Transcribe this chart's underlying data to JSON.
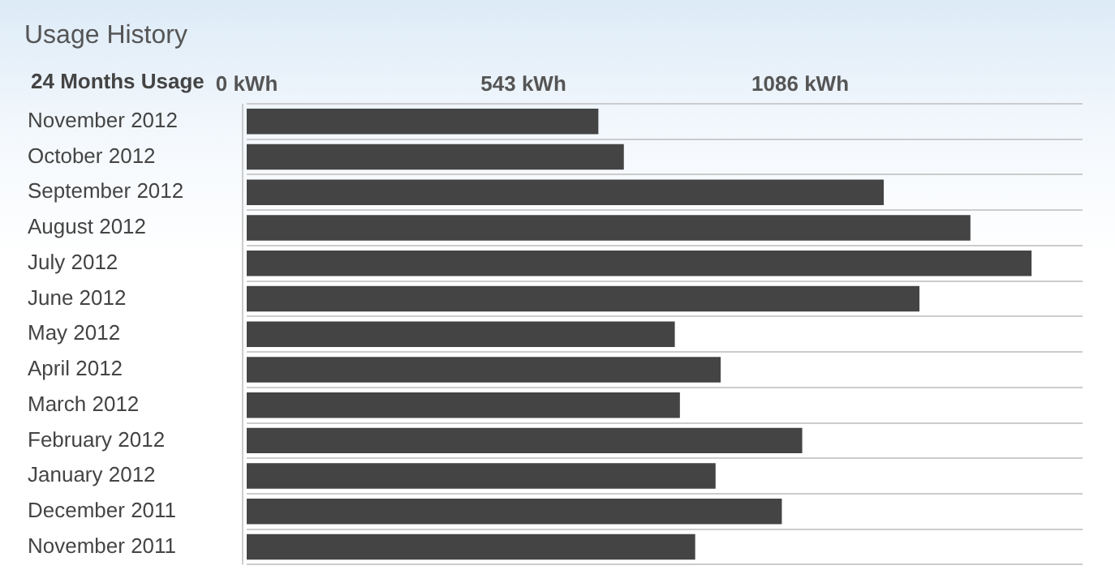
{
  "chart_data": {
    "type": "bar",
    "orientation": "horizontal",
    "title": "Usage History",
    "ylabel": "24 Months Usage",
    "categories": [
      "November 2012",
      "October 2012",
      "September 2012",
      "August 2012",
      "July 2012",
      "June 2012",
      "May 2012",
      "April 2012",
      "March 2012",
      "February 2012",
      "January 2012",
      "December 2011",
      "November 2011"
    ],
    "values": [
      690,
      740,
      1250,
      1420,
      1540,
      1320,
      840,
      930,
      850,
      1090,
      920,
      1050,
      880
    ],
    "color": "#444444",
    "xlim": [
      0,
      1640
    ],
    "xticks": [
      {
        "value": 0,
        "label": "0 kWh"
      },
      {
        "value": 543,
        "label": "543 kWh"
      },
      {
        "value": 1086,
        "label": "1086 kWh"
      }
    ],
    "grid": "y"
  }
}
